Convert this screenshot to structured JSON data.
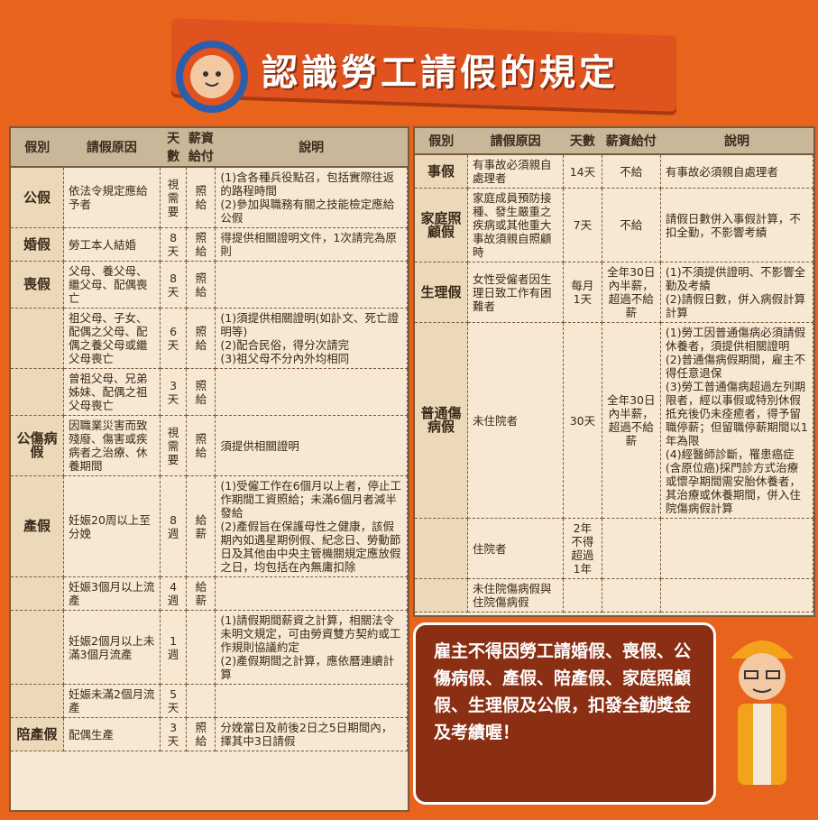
{
  "title": "認識勞工請假的規定",
  "headers": [
    "假別",
    "請假原因",
    "天數",
    "薪資給付",
    "說明"
  ],
  "left_rows": [
    {
      "cat": "公假",
      "reason": "依法令規定應給予者",
      "days": "視需要",
      "pay": "照給",
      "note": "(1)含各種兵役點召，包括實際往返的路程時間\n(2)參加與職務有關之技能檢定應給公假"
    },
    {
      "cat": "婚假",
      "reason": "勞工本人結婚",
      "days": "8天",
      "pay": "照給",
      "note": "得提供相關證明文件，1次請完為原則"
    },
    {
      "cat": "喪假",
      "reason": "父母、養父母、繼父母、配偶喪亡",
      "days": "8天",
      "pay": "照給",
      "note": ""
    },
    {
      "cat": "",
      "reason": "祖父母、子女、配偶之父母、配偶之養父母或繼父母喪亡",
      "days": "6天",
      "pay": "照給",
      "note": "(1)須提供相關證明(如訃文、死亡證明等)\n(2)配合民俗，得分次請完\n(3)祖父母不分內外均相同"
    },
    {
      "cat": "",
      "reason": "曾祖父母、兄弟姊妹、配偶之祖父母喪亡",
      "days": "3天",
      "pay": "照給",
      "note": ""
    },
    {
      "cat": "公傷病假",
      "reason": "因職業災害而致殘廢、傷害或疾病者之治療、休養期間",
      "days": "視需要",
      "pay": "照給",
      "note": "須提供相關證明"
    },
    {
      "cat": "產假",
      "reason": "妊娠20周以上至分娩",
      "days": "8週",
      "pay": "給薪",
      "note": "(1)受僱工作在6個月以上者，停止工作期間工資照給；未滿6個月者減半發給\n(2)產假旨在保護母性之健康，該假期內如遇星期例假、紀念日、勞動節日及其他由中央主管機關規定應放假之日，均包括在內無庸扣除"
    },
    {
      "cat": "",
      "reason": "妊娠3個月以上流產",
      "days": "4週",
      "pay": "給薪",
      "note": ""
    },
    {
      "cat": "",
      "reason": "妊娠2個月以上未滿3個月流產",
      "days": "1週",
      "pay": "",
      "note": "(1)請假期間薪資之計算，相關法令未明文規定，可由勞資雙方契約或工作規則協議約定\n(2)產假期間之計算，應依曆連續計算"
    },
    {
      "cat": "",
      "reason": "妊娠未滿2個月流產",
      "days": "5天",
      "pay": "",
      "note": ""
    },
    {
      "cat": "陪產假",
      "reason": "配偶生產",
      "days": "3天",
      "pay": "照給",
      "note": "分娩當日及前後2日之5日期間內，擇其中3日請假"
    }
  ],
  "right_rows": [
    {
      "cat": "事假",
      "reason": "有事故必須親自處理者",
      "days": "14天",
      "pay": "不給",
      "note": "有事故必須親自處理者"
    },
    {
      "cat": "家庭照顧假",
      "reason": "家庭成員預防接種、發生嚴重之疾病或其他重大事故須親自照顧時",
      "days": "7天",
      "pay": "不給",
      "note": "請假日數併入事假計算，不扣全勤，不影響考績"
    },
    {
      "cat": "生理假",
      "reason": "女性受僱者因生理日致工作有困難者",
      "days": "每月1天",
      "pay": "全年30日內半薪，超過不給薪",
      "note": "(1)不須提供證明、不影響全勤及考績\n(2)請假日數，併入病假計算計算"
    },
    {
      "cat": "普通傷病假",
      "reason": "未住院者",
      "days": "30天",
      "pay": "全年30日內半薪，超過不給薪",
      "note": "(1)勞工因普通傷病必須請假休養者，須提供相關證明\n(2)普通傷病假期間，雇主不得任意退保\n(3)勞工普通傷病超過左列期限者，經以事假或特別休假抵充後仍未痊癒者，得予留職停薪；但留職停薪期間以1年為限\n(4)經醫師診斷，罹患癌症(含原位癌)採門診方式治療或懷孕期間需安胎休養者，其治療或休養期間，併入住院傷病假計算"
    },
    {
      "cat": "",
      "reason": "住院者",
      "days": "2年不得超過1年",
      "pay": "",
      "note": ""
    },
    {
      "cat": "",
      "reason": "未住院傷病假與住院傷病假",
      "days": "",
      "pay": "",
      "note": ""
    }
  ],
  "bubble_text": "雇主不得因勞工請婚假、喪假、公傷病假、產假、陪產假、家庭照顧假、生理假及公假，扣發全勤獎金及考績喔！"
}
